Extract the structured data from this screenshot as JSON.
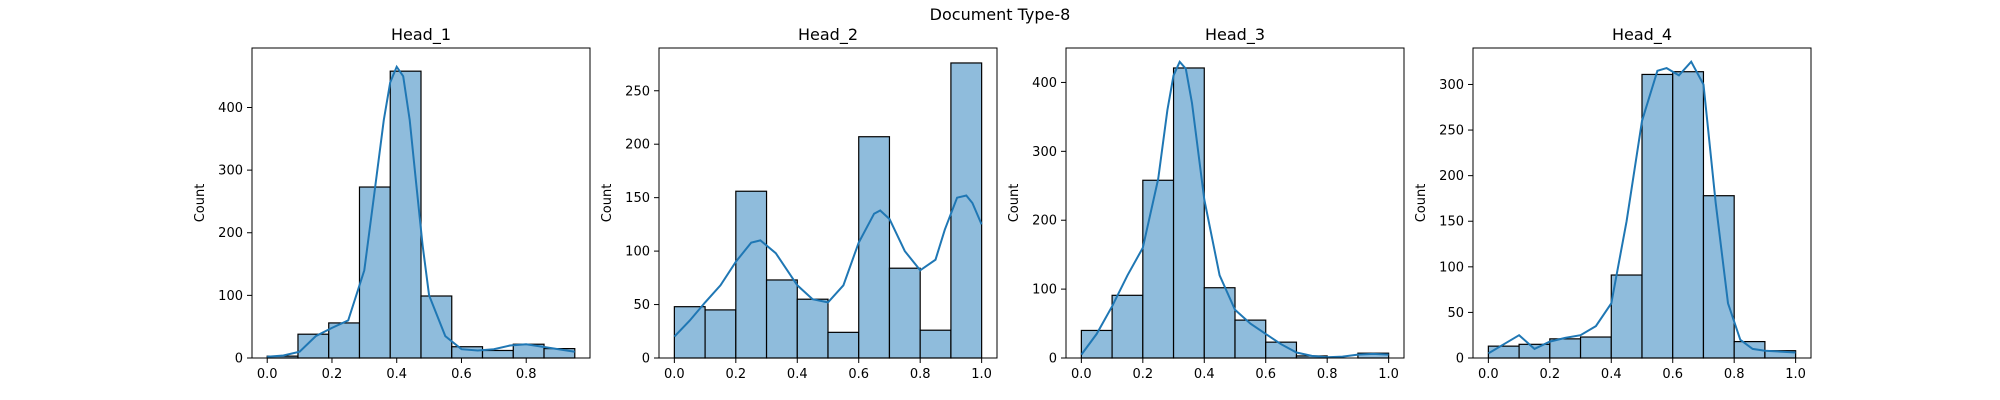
{
  "figure_title": "Document Type-8",
  "colors": {
    "bar_fill": "#8fbcdc",
    "bar_edge": "#000000",
    "kde_line": "#1f77b4"
  },
  "chart_data": [
    {
      "type": "bar",
      "title": "Head_1",
      "ylabel": "Count",
      "xlabel": "",
      "bin_edges": [
        0.0,
        0.095,
        0.19,
        0.285,
        0.38,
        0.475,
        0.57,
        0.665,
        0.76,
        0.855,
        0.95
      ],
      "values": [
        3,
        38,
        56,
        273,
        458,
        99,
        18,
        12,
        22,
        15
      ],
      "xlim": [
        -0.047,
        0.997
      ],
      "ylim": [
        0,
        495
      ],
      "xticks": [
        0.0,
        0.2,
        0.4,
        0.6,
        0.8
      ],
      "xtick_labels": [
        "0.0",
        "0.2",
        "0.4",
        "0.6",
        "0.8"
      ],
      "yticks": [
        0,
        100,
        200,
        300,
        400
      ],
      "ytick_labels": [
        "0",
        "100",
        "200",
        "300",
        "400"
      ],
      "kde": {
        "x": [
          0.0,
          0.05,
          0.1,
          0.15,
          0.2,
          0.25,
          0.3,
          0.33,
          0.36,
          0.38,
          0.4,
          0.42,
          0.44,
          0.46,
          0.48,
          0.5,
          0.55,
          0.6,
          0.65,
          0.7,
          0.75,
          0.8,
          0.85,
          0.9,
          0.95
        ],
        "y": [
          2,
          4,
          10,
          35,
          48,
          60,
          140,
          260,
          380,
          440,
          465,
          450,
          380,
          280,
          180,
          100,
          35,
          14,
          12,
          14,
          20,
          22,
          18,
          14,
          10
        ]
      }
    },
    {
      "type": "bar",
      "title": "Head_2",
      "ylabel": "Count",
      "xlabel": "",
      "bin_edges": [
        0.0,
        0.1,
        0.2,
        0.3,
        0.4,
        0.5,
        0.6,
        0.7,
        0.8,
        0.9,
        1.0
      ],
      "values": [
        48,
        45,
        156,
        73,
        55,
        24,
        207,
        84,
        26,
        276
      ],
      "xlim": [
        -0.05,
        1.05
      ],
      "ylim": [
        0,
        290
      ],
      "xticks": [
        0.0,
        0.2,
        0.4,
        0.6,
        0.8,
        1.0
      ],
      "xtick_labels": [
        "0.0",
        "0.2",
        "0.4",
        "0.6",
        "0.8",
        "1.0"
      ],
      "yticks": [
        0,
        50,
        100,
        150,
        200,
        250
      ],
      "ytick_labels": [
        "0",
        "50",
        "100",
        "150",
        "200",
        "250"
      ],
      "kde": {
        "x": [
          0.0,
          0.05,
          0.1,
          0.15,
          0.2,
          0.25,
          0.28,
          0.33,
          0.4,
          0.45,
          0.5,
          0.55,
          0.6,
          0.65,
          0.67,
          0.7,
          0.75,
          0.8,
          0.85,
          0.88,
          0.92,
          0.95,
          0.97,
          1.0
        ],
        "y": [
          20,
          35,
          52,
          68,
          90,
          108,
          110,
          98,
          68,
          55,
          52,
          68,
          108,
          135,
          138,
          130,
          100,
          82,
          92,
          120,
          150,
          152,
          145,
          125
        ]
      }
    },
    {
      "type": "bar",
      "title": "Head_3",
      "ylabel": "Count",
      "xlabel": "",
      "bin_edges": [
        0.0,
        0.1,
        0.2,
        0.3,
        0.4,
        0.5,
        0.6,
        0.7,
        0.8,
        0.9,
        1.0
      ],
      "values": [
        40,
        91,
        258,
        421,
        102,
        55,
        23,
        3,
        0,
        7
      ],
      "xlim": [
        -0.05,
        1.05
      ],
      "ylim": [
        0,
        450
      ],
      "xticks": [
        0.0,
        0.2,
        0.4,
        0.6,
        0.8,
        1.0
      ],
      "xtick_labels": [
        "0.0",
        "0.2",
        "0.4",
        "0.6",
        "0.8",
        "1.0"
      ],
      "yticks": [
        0,
        100,
        200,
        300,
        400
      ],
      "ytick_labels": [
        "0",
        "100",
        "200",
        "300",
        "400"
      ],
      "kde": {
        "x": [
          0.0,
          0.05,
          0.1,
          0.15,
          0.2,
          0.25,
          0.28,
          0.3,
          0.32,
          0.34,
          0.36,
          0.4,
          0.45,
          0.5,
          0.55,
          0.6,
          0.65,
          0.7,
          0.75,
          0.8,
          0.85,
          0.9,
          0.95,
          1.0
        ],
        "y": [
          5,
          35,
          75,
          120,
          160,
          260,
          360,
          410,
          430,
          420,
          370,
          230,
          120,
          70,
          50,
          35,
          20,
          8,
          3,
          1,
          2,
          5,
          6,
          5
        ]
      }
    },
    {
      "type": "bar",
      "title": "Head_4",
      "ylabel": "Count",
      "xlabel": "",
      "bin_edges": [
        0.0,
        0.1,
        0.2,
        0.3,
        0.4,
        0.5,
        0.6,
        0.7,
        0.8,
        0.9,
        1.0
      ],
      "values": [
        13,
        15,
        21,
        23,
        91,
        311,
        314,
        178,
        18,
        8
      ],
      "xlim": [
        -0.05,
        1.05
      ],
      "ylim": [
        0,
        340
      ],
      "xticks": [
        0.0,
        0.2,
        0.4,
        0.6,
        0.8,
        1.0
      ],
      "xtick_labels": [
        "0.0",
        "0.2",
        "0.4",
        "0.6",
        "0.8",
        "1.0"
      ],
      "yticks": [
        0,
        50,
        100,
        150,
        200,
        250,
        300
      ],
      "ytick_labels": [
        "0",
        "50",
        "100",
        "150",
        "200",
        "250",
        "300"
      ],
      "kde": {
        "x": [
          0.0,
          0.05,
          0.1,
          0.15,
          0.2,
          0.25,
          0.3,
          0.35,
          0.4,
          0.45,
          0.5,
          0.55,
          0.58,
          0.62,
          0.66,
          0.7,
          0.74,
          0.78,
          0.82,
          0.86,
          0.9,
          0.95,
          1.0
        ],
        "y": [
          5,
          15,
          25,
          10,
          18,
          22,
          25,
          35,
          60,
          150,
          260,
          315,
          318,
          310,
          325,
          300,
          170,
          60,
          20,
          10,
          8,
          7,
          6
        ]
      }
    }
  ]
}
